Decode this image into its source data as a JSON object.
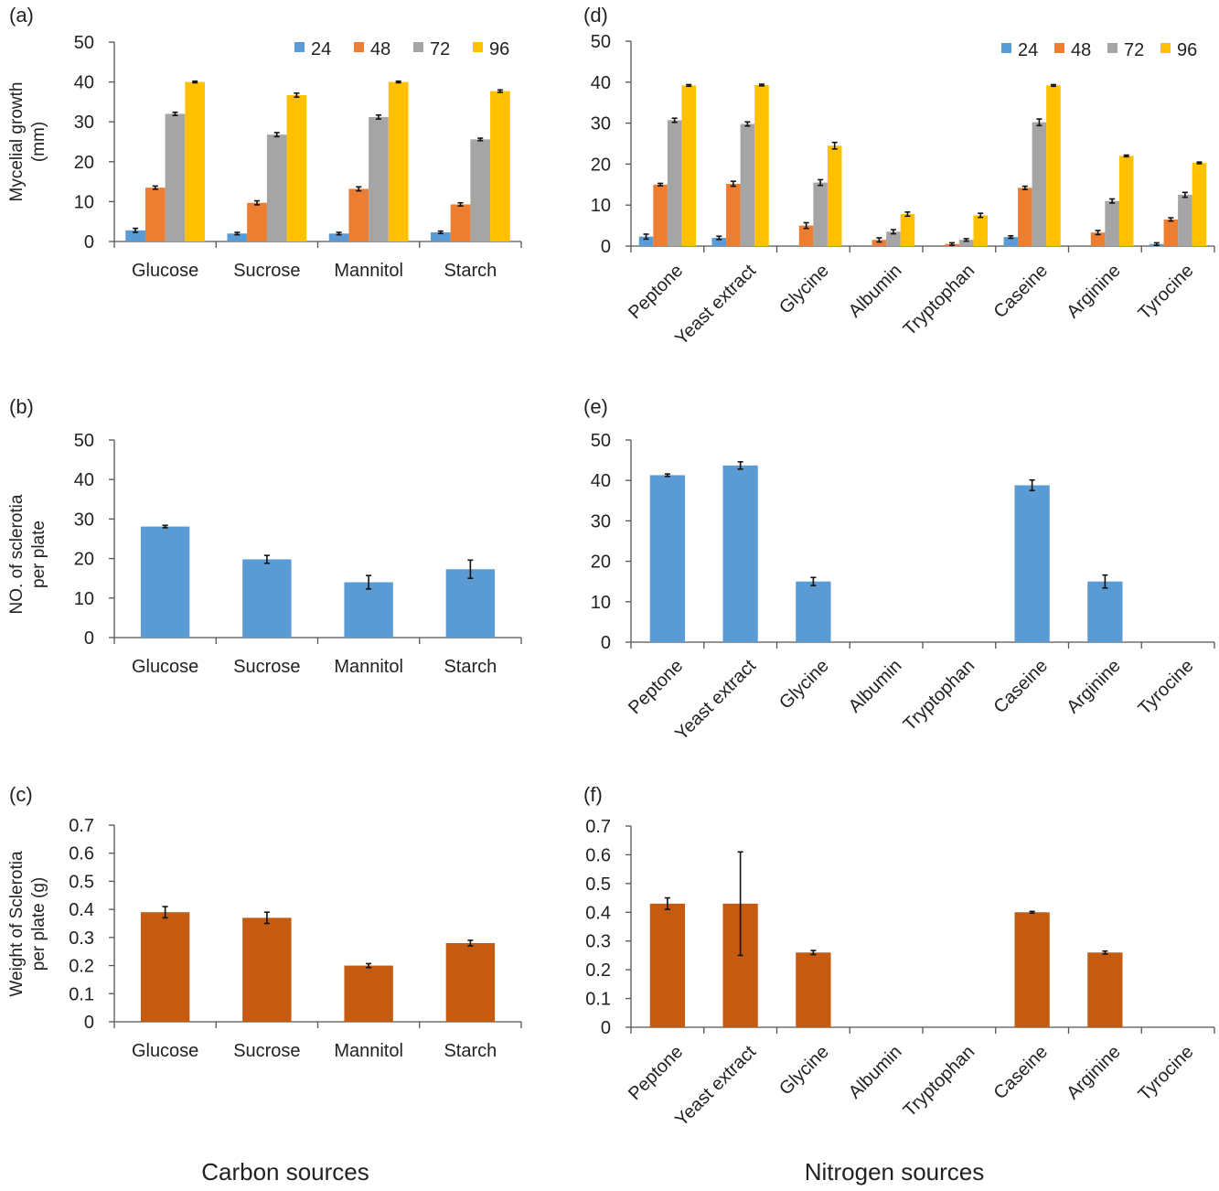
{
  "panel_labels": [
    "(a)",
    "(b)",
    "(c)",
    "(d)",
    "(e)",
    "(f)"
  ],
  "bottom_labels": {
    "carbon": "Carbon sources",
    "nitrogen": "Nitrogen sources"
  },
  "colors": {
    "s24": "#5b9bd5",
    "s48": "#ed7d31",
    "s72": "#a5a5a5",
    "s96": "#ffc000",
    "blue": "#5b9bd5",
    "brown": "#c55a11"
  },
  "chart_data": [
    {
      "id": "a",
      "type": "bar",
      "ylabel": [
        "Mycelial growth",
        "(mm)"
      ],
      "categories": [
        "Glucose",
        "Sucrose",
        "Mannitol",
        "Starch"
      ],
      "ylim": [
        0,
        50
      ],
      "yticks": [
        "0",
        "10",
        "20",
        "30",
        "40",
        "50"
      ],
      "legend_position": "top-right",
      "series": [
        {
          "name": "24",
          "values": [
            2.8,
            2.0,
            2.0,
            2.3
          ],
          "errors": [
            0.5,
            0.3,
            0.3,
            0.3
          ]
        },
        {
          "name": "48",
          "values": [
            13.5,
            9.7,
            13.2,
            9.3
          ],
          "errors": [
            0.4,
            0.5,
            0.5,
            0.4
          ]
        },
        {
          "name": "72",
          "values": [
            32.0,
            26.8,
            31.2,
            25.6
          ],
          "errors": [
            0.4,
            0.5,
            0.5,
            0.3
          ]
        },
        {
          "name": "96",
          "values": [
            40.0,
            36.7,
            40.0,
            37.7
          ],
          "errors": [
            0.2,
            0.5,
            0.2,
            0.3
          ]
        }
      ]
    },
    {
      "id": "b",
      "type": "bar",
      "ylabel": [
        "NO. of sclerotia",
        "per plate"
      ],
      "categories": [
        "Glucose",
        "Sucrose",
        "Mannitol",
        "Starch"
      ],
      "ylim": [
        0,
        50
      ],
      "yticks": [
        "0",
        "10",
        "20",
        "30",
        "40",
        "50"
      ],
      "series": [
        {
          "values": [
            28.1,
            19.8,
            14.0,
            17.3
          ],
          "errors": [
            0.3,
            1.0,
            1.7,
            2.3
          ]
        }
      ]
    },
    {
      "id": "c",
      "type": "bar",
      "ylabel": [
        "Weight of Sclerotia",
        "per plate (g)"
      ],
      "categories": [
        "Glucose",
        "Sucrose",
        "Mannitol",
        "Starch"
      ],
      "ylim": [
        0,
        0.7
      ],
      "yticks": [
        "0",
        "0.1",
        "0.2",
        "0.3",
        "0.4",
        "0.5",
        "0.6",
        "0.7"
      ],
      "series": [
        {
          "values": [
            0.39,
            0.37,
            0.2,
            0.28
          ],
          "errors": [
            0.02,
            0.02,
            0.007,
            0.01
          ]
        }
      ]
    },
    {
      "id": "d",
      "type": "bar",
      "categories": [
        "Peptone",
        "Yeast extract",
        "Glycine",
        "Albumin",
        "Tryptophan",
        "Caseine",
        "Arginine",
        "Tyrocine"
      ],
      "ylim": [
        0,
        50
      ],
      "yticks": [
        "0",
        "10",
        "20",
        "30",
        "40",
        "50"
      ],
      "legend_position": "top-right",
      "series": [
        {
          "name": "24",
          "values": [
            2.3,
            2.0,
            0,
            0,
            0,
            2.2,
            0,
            0.5
          ],
          "errors": [
            0.6,
            0.4,
            0,
            0,
            0,
            0.3,
            0,
            0.3
          ]
        },
        {
          "name": "48",
          "values": [
            15.0,
            15.2,
            5.0,
            1.5,
            0.5,
            14.2,
            3.3,
            6.5
          ],
          "errors": [
            0.3,
            0.6,
            0.7,
            0.5,
            0.3,
            0.4,
            0.5,
            0.4
          ]
        },
        {
          "name": "72",
          "values": [
            30.7,
            29.8,
            15.5,
            3.5,
            1.5,
            30.2,
            11.0,
            12.5
          ],
          "errors": [
            0.5,
            0.5,
            0.7,
            0.5,
            0.3,
            0.8,
            0.5,
            0.6
          ]
        },
        {
          "name": "96",
          "values": [
            39.2,
            39.3,
            24.5,
            7.8,
            7.5,
            39.2,
            22.0,
            20.3
          ],
          "errors": [
            0.2,
            0.2,
            0.8,
            0.5,
            0.5,
            0.2,
            0.2,
            0.2
          ]
        }
      ]
    },
    {
      "id": "e",
      "type": "bar",
      "categories": [
        "Peptone",
        "Yeast extract",
        "Glycine",
        "Albumin",
        "Tryptophan",
        "Caseine",
        "Arginine",
        "Tyrocine"
      ],
      "ylim": [
        0,
        50
      ],
      "yticks": [
        "0",
        "10",
        "20",
        "30",
        "40",
        "50"
      ],
      "series": [
        {
          "values": [
            41.3,
            43.7,
            15.0,
            0,
            0,
            38.8,
            15.0,
            0
          ],
          "errors": [
            0.3,
            0.9,
            1.0,
            0,
            0,
            1.3,
            1.6,
            0
          ]
        }
      ]
    },
    {
      "id": "f",
      "type": "bar",
      "categories": [
        "Peptone",
        "Yeast extract",
        "Glycine",
        "Albumin",
        "Tryptophan",
        "Caseine",
        "Arginine",
        "Tyrocine"
      ],
      "ylim": [
        0,
        0.7
      ],
      "yticks": [
        "0",
        "0.1",
        "0.2",
        "0.3",
        "0.4",
        "0.5",
        "0.6",
        "0.7"
      ],
      "series": [
        {
          "values": [
            0.43,
            0.43,
            0.26,
            0,
            0,
            0.4,
            0.26,
            0
          ],
          "errors": [
            0.02,
            0.18,
            0.007,
            0,
            0,
            0.003,
            0.005,
            0
          ]
        }
      ]
    }
  ]
}
